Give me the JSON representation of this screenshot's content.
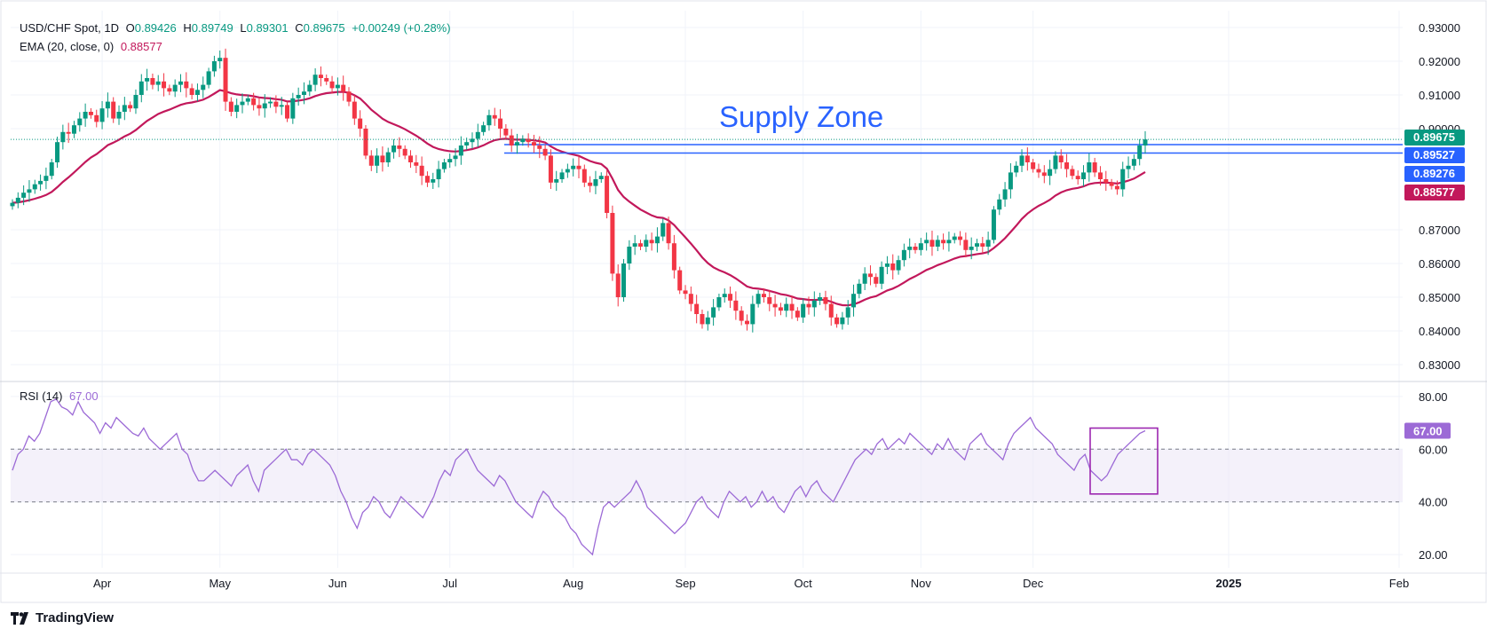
{
  "legend": {
    "symbol": "USD/CHF Spot, 1D",
    "open_label": "O",
    "open": "0.89426",
    "high_label": "H",
    "high": "0.89749",
    "low_label": "L",
    "low": "0.89301",
    "close_label": "C",
    "close": "0.89675",
    "change": "+0.00249 (+0.28%)",
    "ema_label": "EMA (20, close, 0)",
    "ema_value": "0.88577",
    "rsi_label": "RSI (14)",
    "rsi_value": "67.00"
  },
  "branding": {
    "name": "TradingView"
  },
  "colors": {
    "up": "#089981",
    "down": "#f23645",
    "ema": "#c2185b",
    "rsi": "#9c6ad6",
    "zone": "#2962ff"
  },
  "chart_data": [
    {
      "type": "candlestick",
      "title": "USD/CHF Spot, 1D",
      "annotation": "Supply Zone",
      "ylim": [
        0.825,
        0.935
      ],
      "y_ticks": [
        "0.93000",
        "0.92000",
        "0.91000",
        "0.90000",
        "0.87000",
        "0.86000",
        "0.85000",
        "0.84000",
        "0.83000"
      ],
      "x_ticks": [
        "Apr",
        "May",
        "Jun",
        "Jul",
        "Aug",
        "Sep",
        "Oct",
        "Nov",
        "Dec",
        "2025",
        "Feb"
      ],
      "price_badges": [
        {
          "label": "0.89675",
          "value": 0.89675,
          "color": "#089981"
        },
        {
          "label": "0.89527",
          "value": 0.89527,
          "color": "#2962ff"
        },
        {
          "label": "0.89276",
          "value": 0.89276,
          "color": "#2962ff"
        },
        {
          "label": "0.88577",
          "value": 0.88577,
          "color": "#c2185b"
        }
      ],
      "supply_zone": [
        0.89276,
        0.89527
      ],
      "close_series": [
        0.878,
        0.8795,
        0.881,
        0.882,
        0.8835,
        0.8845,
        0.886,
        0.89,
        0.896,
        0.899,
        0.8985,
        0.901,
        0.903,
        0.905,
        0.904,
        0.902,
        0.906,
        0.908,
        0.903,
        0.905,
        0.907,
        0.906,
        0.91,
        0.914,
        0.915,
        0.913,
        0.914,
        0.912,
        0.911,
        0.913,
        0.914,
        0.912,
        0.91,
        0.9115,
        0.913,
        0.917,
        0.92,
        0.921,
        0.908,
        0.905,
        0.907,
        0.908,
        0.909,
        0.907,
        0.906,
        0.9075,
        0.908,
        0.9065,
        0.907,
        0.903,
        0.909,
        0.91,
        0.911,
        0.913,
        0.916,
        0.915,
        0.914,
        0.912,
        0.913,
        0.911,
        0.908,
        0.903,
        0.9,
        0.892,
        0.889,
        0.892,
        0.89,
        0.893,
        0.895,
        0.894,
        0.892,
        0.89,
        0.889,
        0.886,
        0.884,
        0.885,
        0.888,
        0.89,
        0.891,
        0.892,
        0.895,
        0.896,
        0.897,
        0.899,
        0.901,
        0.904,
        0.903,
        0.9,
        0.898,
        0.895,
        0.896,
        0.897,
        0.896,
        0.895,
        0.894,
        0.892,
        0.884,
        0.885,
        0.887,
        0.888,
        0.889,
        0.888,
        0.884,
        0.883,
        0.885,
        0.886,
        0.875,
        0.857,
        0.85,
        0.86,
        0.865,
        0.866,
        0.865,
        0.867,
        0.866,
        0.868,
        0.872,
        0.866,
        0.858,
        0.852,
        0.851,
        0.848,
        0.845,
        0.842,
        0.844,
        0.847,
        0.85,
        0.851,
        0.849,
        0.846,
        0.843,
        0.842,
        0.848,
        0.851,
        0.85,
        0.848,
        0.847,
        0.846,
        0.848,
        0.846,
        0.844,
        0.848,
        0.847,
        0.849,
        0.85,
        0.848,
        0.844,
        0.842,
        0.844,
        0.847,
        0.851,
        0.854,
        0.857,
        0.856,
        0.854,
        0.859,
        0.86,
        0.858,
        0.861,
        0.864,
        0.865,
        0.864,
        0.866,
        0.867,
        0.865,
        0.867,
        0.866,
        0.867,
        0.868,
        0.867,
        0.864,
        0.865,
        0.866,
        0.865,
        0.867,
        0.876,
        0.879,
        0.882,
        0.887,
        0.889,
        0.892,
        0.89,
        0.888,
        0.887,
        0.886,
        0.888,
        0.892,
        0.89,
        0.888,
        0.886,
        0.885,
        0.887,
        0.89,
        0.887,
        0.885,
        0.884,
        0.883,
        0.882,
        0.888,
        0.889,
        0.891,
        0.895,
        0.8968
      ]
    },
    {
      "type": "line",
      "title": "RSI (14)",
      "ylim": [
        15,
        85
      ],
      "y_ticks": [
        "80.00",
        "60.00",
        "40.00",
        "20.00"
      ],
      "bands": [
        40,
        60
      ],
      "values": [
        52,
        58,
        60,
        65,
        63,
        66,
        72,
        78,
        79,
        76,
        75,
        73,
        78,
        74,
        72,
        70,
        66,
        70,
        68,
        72,
        70,
        68,
        66,
        65,
        68,
        64,
        62,
        60,
        62,
        64,
        66,
        60,
        58,
        52,
        48,
        48,
        50,
        52,
        50,
        48,
        46,
        50,
        52,
        54,
        48,
        44,
        52,
        54,
        56,
        58,
        60,
        56,
        56,
        54,
        58,
        60,
        58,
        56,
        54,
        50,
        44,
        40,
        34,
        30,
        36,
        38,
        42,
        40,
        36,
        34,
        38,
        42,
        40,
        38,
        36,
        34,
        38,
        42,
        48,
        52,
        50,
        56,
        58,
        60,
        56,
        52,
        50,
        48,
        46,
        50,
        48,
        44,
        40,
        38,
        36,
        34,
        40,
        44,
        42,
        38,
        36,
        34,
        30,
        28,
        24,
        22,
        20,
        30,
        38,
        40,
        38,
        40,
        42,
        44,
        48,
        44,
        38,
        36,
        34,
        32,
        30,
        28,
        30,
        32,
        36,
        40,
        42,
        38,
        36,
        34,
        40,
        44,
        42,
        40,
        42,
        38,
        40,
        44,
        40,
        42,
        38,
        36,
        40,
        44,
        46,
        42,
        46,
        48,
        44,
        42,
        40,
        44,
        48,
        52,
        56,
        58,
        60,
        58,
        62,
        64,
        60,
        62,
        64,
        62,
        66,
        64,
        62,
        60,
        58,
        62,
        60,
        64,
        60,
        58,
        56,
        62,
        64,
        66,
        62,
        60,
        58,
        56,
        62,
        66,
        68,
        70,
        72,
        68,
        66,
        64,
        62,
        58,
        56,
        54,
        52,
        56,
        58,
        52,
        50,
        48,
        50,
        54,
        58,
        60,
        62,
        64,
        66,
        67
      ]
    }
  ]
}
